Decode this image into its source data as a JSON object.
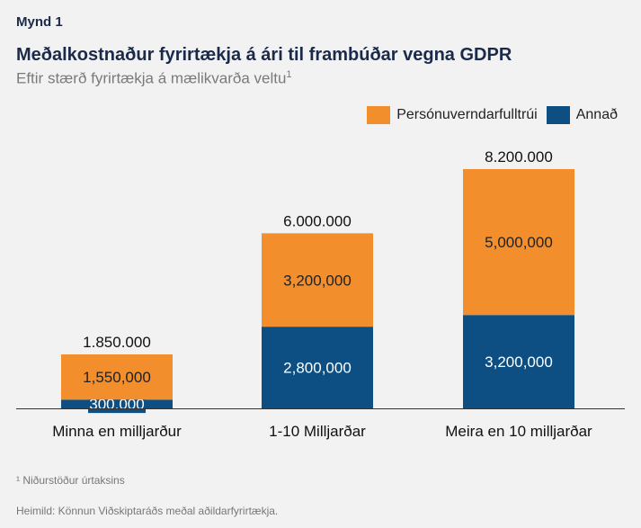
{
  "header": {
    "figure_label": "Mynd 1",
    "title": "Meðalkostnaður fyrirtækja á ári til frambúðar vegna GDPR",
    "subtitle": "Eftir stærð fyrirtækja á mælikvarða veltu",
    "subtitle_sup": "1"
  },
  "legend": [
    {
      "label": "Persónuverndarfulltrúi",
      "color": "#f28e2b"
    },
    {
      "label": "Annað",
      "color": "#0d4f82"
    }
  ],
  "chart_data": {
    "type": "bar",
    "stacked": true,
    "categories": [
      "Minna en milljarður",
      "1-10 Milljarðar",
      "Meira en 10 milljarðar"
    ],
    "series": [
      {
        "name": "Annað",
        "color": "#0d4f82",
        "values": [
          300000,
          2800000,
          3200000
        ],
        "labels": [
          "300.000",
          "2,800,000",
          "3,200,000"
        ]
      },
      {
        "name": "Persónuverndarfulltrúi",
        "color": "#f28e2b",
        "values": [
          1550000,
          3200000,
          5000000
        ],
        "labels": [
          "1,550,000",
          "3,200,000",
          "5,000,000"
        ]
      }
    ],
    "totals": [
      1850000,
      6000000,
      8200000
    ],
    "total_labels": [
      "1.850.000",
      "6.000.000",
      "8.200.000"
    ],
    "ylim": [
      0,
      8200000
    ],
    "legend_position": "top-right",
    "grid": false
  },
  "footnote": "¹ Niðurstöður úrtaksins",
  "source": "Heimild: Könnun Viðskiptaráðs meðal aðildarfyrirtækja."
}
